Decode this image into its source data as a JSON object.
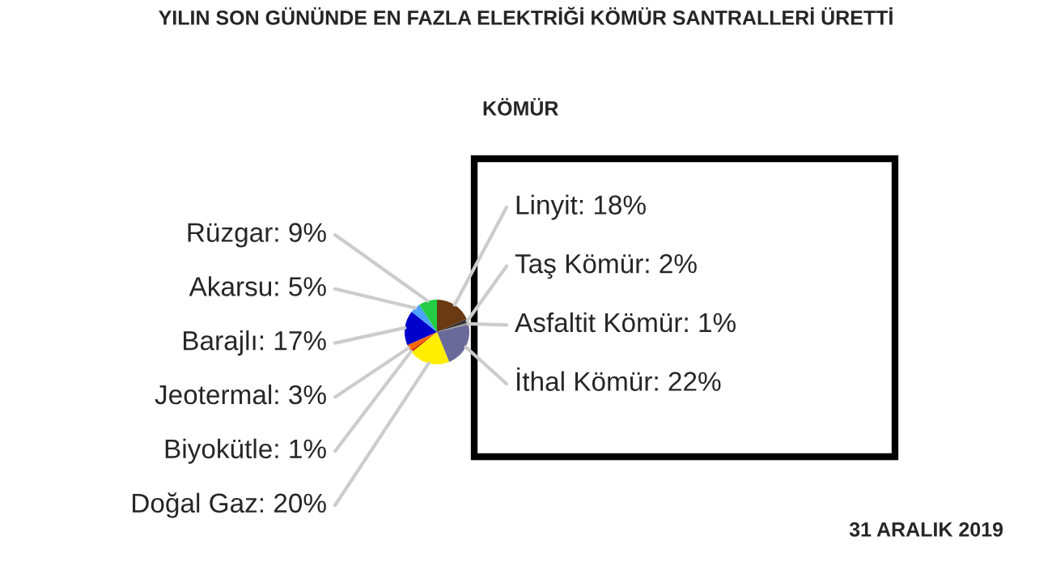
{
  "chart_data": {
    "type": "pie",
    "title": "YILIN SON GÜNÜNDE EN FAZLA ELEKTRİĞİ KÖMÜR SANTRALLERİ ÜRETTİ",
    "categories": [
      "Linyit",
      "Taş Kömür",
      "Asfaltit Kömür",
      "İthal Kömür",
      "Doğal Gaz",
      "Biyokütle",
      "Jeotermal",
      "Barajlı",
      "Akarsu",
      "Rüzgar"
    ],
    "values": [
      18,
      2,
      1,
      22,
      20,
      1,
      3,
      17,
      5,
      9
    ],
    "colors": [
      "#6b3a12",
      "#333333",
      "#9a9a9a",
      "#6a6a9a",
      "#ffee00",
      "#cc2200",
      "#ff6600",
      "#0000cc",
      "#4aa3ff",
      "#22cc44"
    ],
    "value_labels": [
      "18%",
      "2%",
      "1%",
      "22%",
      "20%",
      "1%",
      "3%",
      "17%",
      "5%",
      "9%"
    ],
    "annotations": [
      "KÖMÜR",
      "31 ARALIK 2019"
    ]
  }
}
